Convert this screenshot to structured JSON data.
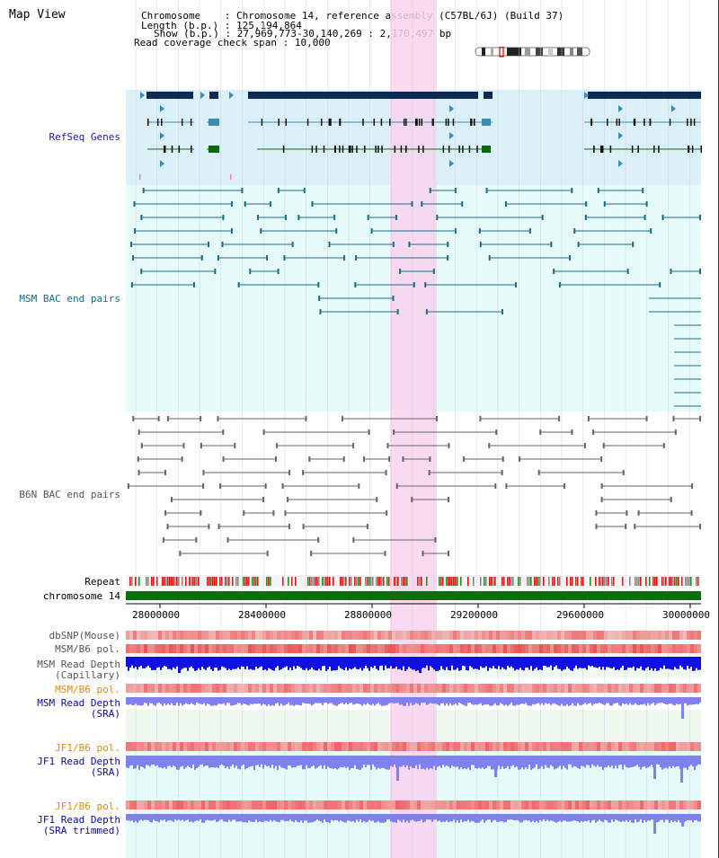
{
  "title": "Map View",
  "info": {
    "chromosome_label": "Chromosome",
    "chromosome_value": "Chromosome 14, reference assembly (C57BL/6J) (Build 37)",
    "length_label": "Length (b.p.)",
    "length_value": "125,194,864",
    "show_label": "Show (b.p.)",
    "show_value": "27,969,773-30,140,269 : 2,170,497 bp",
    "coverage_label": "Read coverage check span",
    "coverage_value": "10,000"
  },
  "tracks": {
    "refseq": "RefSeq Genes",
    "msm_bac": "MSM BAC end pairs",
    "b6n_bac": "B6N BAC end pairs",
    "repeat": "Repeat",
    "chromosome": "chromosome 14",
    "dbsnp": "dbSNP(Mouse)",
    "msm_b6_pol_1": "MSM/B6 pol.",
    "msm_read_depth_cap_1": "MSM Read Depth",
    "msm_read_depth_cap_2": "(Capillary)",
    "msm_b6_pol_2": "MSM/B6 pol.",
    "msm_read_depth_sra_1": "MSM Read Depth",
    "msm_read_depth_sra_2": "(SRA)",
    "jf1_b6_pol_1": "JF1/B6 pol.",
    "jf1_read_depth_sra_1": "JF1 Read Depth",
    "jf1_read_depth_sra_2": "(SRA)",
    "jf1_b6_pol_2": "JF1/B6 pol.",
    "jf1_read_depth_trim_1": "JF1 Read Depth",
    "jf1_read_depth_trim_2": "(SRA trimmed)"
  },
  "axis": {
    "ticks": [
      "28000000",
      "28400000",
      "28800000",
      "29200000",
      "29600000",
      "30000000"
    ]
  },
  "colors": {
    "refseq_bg": "#dcf0fa",
    "msm_bg": "#e8fbfb",
    "highlight": "#f9d3ef",
    "gene_dark": "#0b2b56",
    "gene_teal": "#3a8fb0",
    "gene_green": "#0a6a0a",
    "chrom_green": "#0c6e0c",
    "depth_blue": "#1010e0",
    "depth_light": "#8080f0",
    "pol_red": "#f05050"
  }
}
